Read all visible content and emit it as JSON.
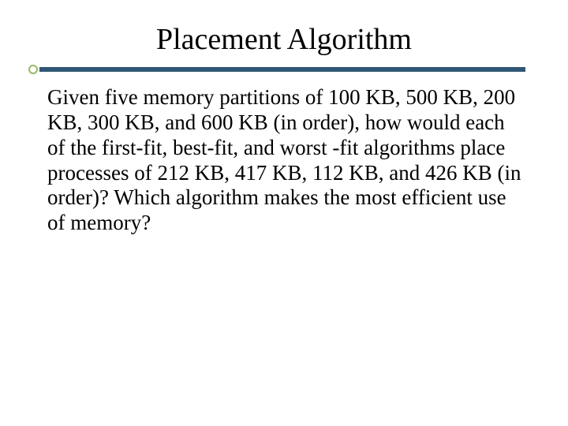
{
  "slide": {
    "title": "Placement Algorithm",
    "body": "Given five memory partitions of 100 KB, 500 KB, 200 KB, 300 KB, and 600 KB (in order), how would each of the first-fit, best-fit, and worst -fit algorithms place processes of 212 KB, 417 KB, 112 KB, and 426 KB (in order)? Which algorithm makes the most efficient use of memory?"
  },
  "style": {
    "title_fontsize": 38,
    "body_fontsize": 27,
    "title_color": "#000000",
    "body_color": "#000000",
    "rule_line_color": "#2f5674",
    "rule_dot_border_color": "#99b866",
    "background_color": "#ffffff",
    "font_family": "Times New Roman"
  }
}
